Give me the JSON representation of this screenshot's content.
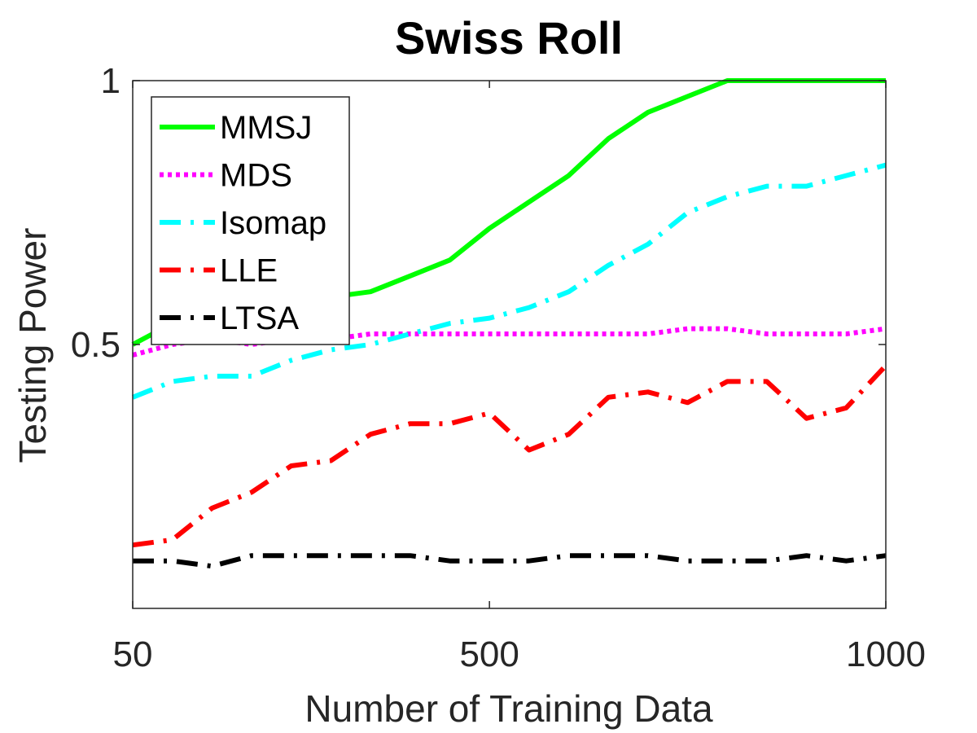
{
  "chart_data": {
    "type": "line",
    "title": "Swiss Roll",
    "xlabel": "Number of Training Data",
    "ylabel": "Testing Power",
    "xlim": [
      50,
      1000
    ],
    "ylim": [
      0,
      1
    ],
    "xticks": [
      50,
      500,
      1000
    ],
    "xtick_labels": [
      "50",
      "500",
      "1000"
    ],
    "yticks": [
      0.5,
      1
    ],
    "ytick_labels": [
      "0.5",
      "1"
    ],
    "legend_position": "top-left",
    "x": [
      50,
      100,
      150,
      200,
      250,
      300,
      350,
      400,
      450,
      500,
      550,
      600,
      650,
      700,
      750,
      800,
      850,
      900,
      950,
      1000
    ],
    "series": [
      {
        "name": "MMSJ",
        "color": "#00ff00",
        "style": "solid",
        "values": [
          0.5,
          0.54,
          0.56,
          0.57,
          0.58,
          0.59,
          0.6,
          0.63,
          0.66,
          0.72,
          0.77,
          0.82,
          0.89,
          0.94,
          0.97,
          1.0,
          1.0,
          1.0,
          1.0,
          1.0
        ]
      },
      {
        "name": "MDS",
        "color": "#ff00ff",
        "style": "dotted",
        "values": [
          0.48,
          0.5,
          0.51,
          0.5,
          0.51,
          0.51,
          0.52,
          0.52,
          0.52,
          0.52,
          0.52,
          0.52,
          0.52,
          0.52,
          0.53,
          0.53,
          0.52,
          0.52,
          0.52,
          0.53
        ]
      },
      {
        "name": "Isomap",
        "color": "#00ffff",
        "style": "dashdot",
        "values": [
          0.4,
          0.43,
          0.44,
          0.44,
          0.47,
          0.49,
          0.5,
          0.52,
          0.54,
          0.55,
          0.57,
          0.6,
          0.65,
          0.69,
          0.75,
          0.78,
          0.8,
          0.8,
          0.82,
          0.84
        ]
      },
      {
        "name": "LLE",
        "color": "#ff0000",
        "style": "dashdot",
        "values": [
          0.12,
          0.13,
          0.19,
          0.22,
          0.27,
          0.28,
          0.33,
          0.35,
          0.35,
          0.37,
          0.3,
          0.33,
          0.4,
          0.41,
          0.39,
          0.43,
          0.43,
          0.36,
          0.38,
          0.46
        ]
      },
      {
        "name": "LTSA",
        "color": "#000000",
        "style": "dashdot",
        "values": [
          0.09,
          0.09,
          0.08,
          0.1,
          0.1,
          0.1,
          0.1,
          0.1,
          0.09,
          0.09,
          0.09,
          0.1,
          0.1,
          0.1,
          0.09,
          0.09,
          0.09,
          0.1,
          0.09,
          0.1
        ]
      }
    ]
  }
}
